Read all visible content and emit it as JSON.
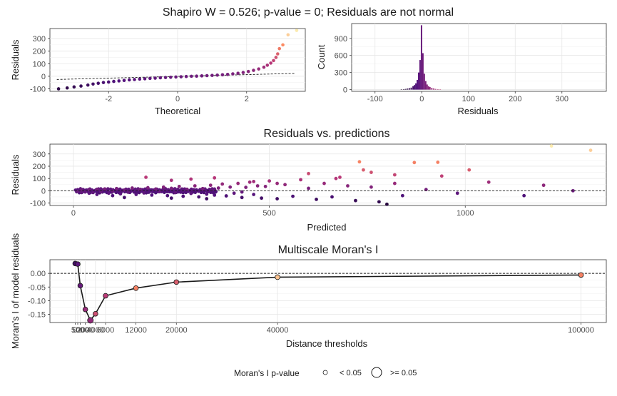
{
  "figure_title": "Shapiro W = 0.526; p-value = 0; Residuals are not normal",
  "legend": {
    "title": "Moran's I p-value",
    "items": [
      "< 0.05",
      ">= 0.05"
    ]
  },
  "chart_data": [
    {
      "id": "qq",
      "type": "scatter",
      "title": "",
      "xlabel": "Theoretical",
      "ylabel": "Residuals",
      "xlim": [
        -3.7,
        3.7
      ],
      "ylim": [
        -120,
        380
      ],
      "xticks": [
        -2,
        0,
        2
      ],
      "xtick_labels": [
        "-2",
        "0",
        "2"
      ],
      "yticks": [
        -100,
        0,
        100,
        200,
        300
      ],
      "ytick_labels": [
        "-100",
        "0",
        "100",
        "200",
        "300"
      ],
      "reference_line": {
        "slope": 7,
        "intercept": -1
      },
      "points": [
        [
          -3.45,
          -100
        ],
        [
          -3.2,
          -93
        ],
        [
          -3.0,
          -85
        ],
        [
          -2.8,
          -78
        ],
        [
          -2.6,
          -70
        ],
        [
          -2.45,
          -62
        ],
        [
          -2.3,
          -56
        ],
        [
          -2.15,
          -50
        ],
        [
          -2.0,
          -46
        ],
        [
          -1.85,
          -41
        ],
        [
          -1.7,
          -37
        ],
        [
          -1.55,
          -33
        ],
        [
          -1.4,
          -29
        ],
        [
          -1.25,
          -26
        ],
        [
          -1.1,
          -23
        ],
        [
          -0.95,
          -20
        ],
        [
          -0.8,
          -17
        ],
        [
          -0.65,
          -15
        ],
        [
          -0.5,
          -12
        ],
        [
          -0.35,
          -10
        ],
        [
          -0.2,
          -8
        ],
        [
          -0.05,
          -6
        ],
        [
          0.1,
          -4
        ],
        [
          0.25,
          -2
        ],
        [
          0.4,
          0
        ],
        [
          0.55,
          1
        ],
        [
          0.7,
          3
        ],
        [
          0.85,
          5
        ],
        [
          1.0,
          7
        ],
        [
          1.15,
          9
        ],
        [
          1.3,
          12
        ],
        [
          1.45,
          15
        ],
        [
          1.6,
          19
        ],
        [
          1.75,
          24
        ],
        [
          1.9,
          30
        ],
        [
          2.05,
          38
        ],
        [
          2.2,
          47
        ],
        [
          2.35,
          58
        ],
        [
          2.5,
          72
        ],
        [
          2.6,
          88
        ],
        [
          2.7,
          105
        ],
        [
          2.78,
          125
        ],
        [
          2.85,
          150
        ],
        [
          2.9,
          178
        ],
        [
          2.95,
          220
        ],
        [
          3.05,
          250
        ],
        [
          3.2,
          330
        ],
        [
          3.45,
          365
        ]
      ]
    },
    {
      "id": "hist",
      "type": "bar",
      "title": "",
      "xlabel": "Residuals",
      "ylabel": "Count",
      "xlim": [
        -150,
        395
      ],
      "ylim": [
        -30,
        1160
      ],
      "xticks": [
        -100,
        0,
        100,
        200,
        300
      ],
      "xtick_labels": [
        "-100",
        "0",
        "100",
        "200",
        "300"
      ],
      "yticks": [
        0,
        300,
        600,
        900
      ],
      "ytick_labels": [
        "0",
        "300",
        "600",
        "900"
      ],
      "bin_width": 3,
      "bins": [
        [
          -45,
          5
        ],
        [
          -40,
          8
        ],
        [
          -36,
          12
        ],
        [
          -32,
          18
        ],
        [
          -28,
          25
        ],
        [
          -24,
          35
        ],
        [
          -20,
          60
        ],
        [
          -17,
          80
        ],
        [
          -14,
          110
        ],
        [
          -11,
          170
        ],
        [
          -8,
          300
        ],
        [
          -5,
          520
        ],
        [
          -2,
          1130
        ],
        [
          1,
          640
        ],
        [
          4,
          280
        ],
        [
          7,
          150
        ],
        [
          10,
          90
        ],
        [
          13,
          60
        ],
        [
          16,
          45
        ],
        [
          20,
          30
        ],
        [
          24,
          20
        ],
        [
          28,
          12
        ],
        [
          33,
          8
        ],
        [
          38,
          5
        ]
      ]
    },
    {
      "id": "resid_pred",
      "type": "scatter",
      "title": "Residuals vs. predictions",
      "xlabel": "Predicted",
      "ylabel": "Residuals",
      "xlim": [
        -60,
        1360
      ],
      "ylim": [
        -120,
        380
      ],
      "xticks": [
        0,
        500,
        1000
      ],
      "xtick_labels": [
        "0",
        "500",
        "1000"
      ],
      "yticks": [
        -100,
        0,
        100,
        200,
        300
      ],
      "ytick_labels": [
        "-100",
        "0",
        "100",
        "200",
        "300"
      ],
      "points": [
        [
          10,
          -5
        ],
        [
          20,
          5
        ],
        [
          30,
          -10
        ],
        [
          40,
          8
        ],
        [
          50,
          -15
        ],
        [
          60,
          12
        ],
        [
          70,
          -8
        ],
        [
          80,
          15
        ],
        [
          90,
          -20
        ],
        [
          100,
          -3
        ],
        [
          110,
          18
        ],
        [
          120,
          -25
        ],
        [
          130,
          6
        ],
        [
          140,
          -12
        ],
        [
          150,
          22
        ],
        [
          160,
          -30
        ],
        [
          170,
          10
        ],
        [
          180,
          -18
        ],
        [
          190,
          25
        ],
        [
          200,
          -35
        ],
        [
          210,
          14
        ],
        [
          220,
          -8
        ],
        [
          230,
          30
        ],
        [
          240,
          -40
        ],
        [
          250,
          20
        ],
        [
          260,
          -15
        ],
        [
          270,
          35
        ],
        [
          280,
          -45
        ],
        [
          290,
          12
        ],
        [
          300,
          -22
        ],
        [
          310,
          40
        ],
        [
          320,
          -50
        ],
        [
          330,
          18
        ],
        [
          340,
          -28
        ],
        [
          350,
          45
        ],
        [
          360,
          -35
        ],
        [
          370,
          22
        ],
        [
          380,
          55
        ],
        [
          390,
          -42
        ],
        [
          400,
          30
        ],
        [
          410,
          -20
        ],
        [
          420,
          60
        ],
        [
          430,
          -55
        ],
        [
          440,
          28
        ],
        [
          450,
          70
        ],
        [
          460,
          -30
        ],
        [
          470,
          40
        ],
        [
          480,
          -60
        ],
        [
          490,
          35
        ],
        [
          500,
          80
        ],
        [
          520,
          -65
        ],
        [
          540,
          50
        ],
        [
          560,
          -45
        ],
        [
          580,
          90
        ],
        [
          600,
          20
        ],
        [
          620,
          -70
        ],
        [
          640,
          60
        ],
        [
          660,
          -50
        ],
        [
          680,
          110
        ],
        [
          700,
          40
        ],
        [
          720,
          -80
        ],
        [
          740,
          170
        ],
        [
          760,
          30
        ],
        [
          780,
          -90
        ],
        [
          800,
          -110
        ],
        [
          820,
          60
        ],
        [
          840,
          -40
        ],
        [
          870,
          230
        ],
        [
          900,
          10
        ],
        [
          940,
          120
        ],
        [
          980,
          -20
        ],
        [
          1010,
          170
        ],
        [
          1060,
          70
        ],
        [
          1150,
          -40
        ],
        [
          1200,
          45
        ],
        [
          1275,
          0
        ],
        [
          1320,
          330
        ],
        [
          1220,
          365
        ],
        [
          730,
          236
        ],
        [
          930,
          232
        ],
        [
          760,
          150
        ],
        [
          820,
          130
        ],
        [
          670,
          100
        ],
        [
          600,
          140
        ],
        [
          360,
          105
        ],
        [
          250,
          85
        ],
        [
          185,
          110
        ],
        [
          300,
          95
        ],
        [
          460,
          75
        ],
        [
          520,
          60
        ],
        [
          430,
          -10
        ],
        [
          250,
          -60
        ],
        [
          340,
          -65
        ],
        [
          130,
          -55
        ],
        [
          100,
          -40
        ],
        [
          60,
          -30
        ],
        [
          40,
          -20
        ],
        [
          20,
          -12
        ]
      ]
    },
    {
      "id": "moran",
      "type": "line",
      "title": "Multiscale Moran's I",
      "xlabel": "Distance thresholds",
      "ylabel": "Moran's I of model residuals",
      "xlim": [
        -5000,
        105000
      ],
      "ylim": [
        -0.18,
        0.05
      ],
      "xticks": [
        0,
        500,
        1000,
        2000,
        4000,
        6000,
        12000,
        20000,
        40000,
        100000
      ],
      "xtick_labels": [
        "0",
        "500",
        "1000",
        "2000",
        "4000",
        "6000",
        "12000",
        "20000",
        "40000",
        "100000"
      ],
      "yticks": [
        0,
        -0.05,
        -0.1,
        -0.15
      ],
      "ytick_labels": [
        "0.00",
        "-0.05",
        "-0.10",
        "-0.15"
      ],
      "reference_line_y": 0,
      "points": [
        {
          "x": 0,
          "y": 0.036,
          "p_value": "< 0.05"
        },
        {
          "x": 500,
          "y": 0.034,
          "p_value": "< 0.05"
        },
        {
          "x": 1000,
          "y": -0.045,
          "p_value": "< 0.05"
        },
        {
          "x": 2000,
          "y": -0.132,
          "p_value": "< 0.05"
        },
        {
          "x": 3000,
          "y": -0.172,
          "p_value": ">= 0.05"
        },
        {
          "x": 4000,
          "y": -0.148,
          "p_value": "< 0.05"
        },
        {
          "x": 6000,
          "y": -0.082,
          "p_value": "< 0.05"
        },
        {
          "x": 12000,
          "y": -0.054,
          "p_value": "< 0.05"
        },
        {
          "x": 20000,
          "y": -0.032,
          "p_value": "< 0.05"
        },
        {
          "x": 40000,
          "y": -0.014,
          "p_value": "< 0.05"
        },
        {
          "x": 100000,
          "y": -0.006,
          "p_value": "< 0.05"
        }
      ]
    }
  ]
}
